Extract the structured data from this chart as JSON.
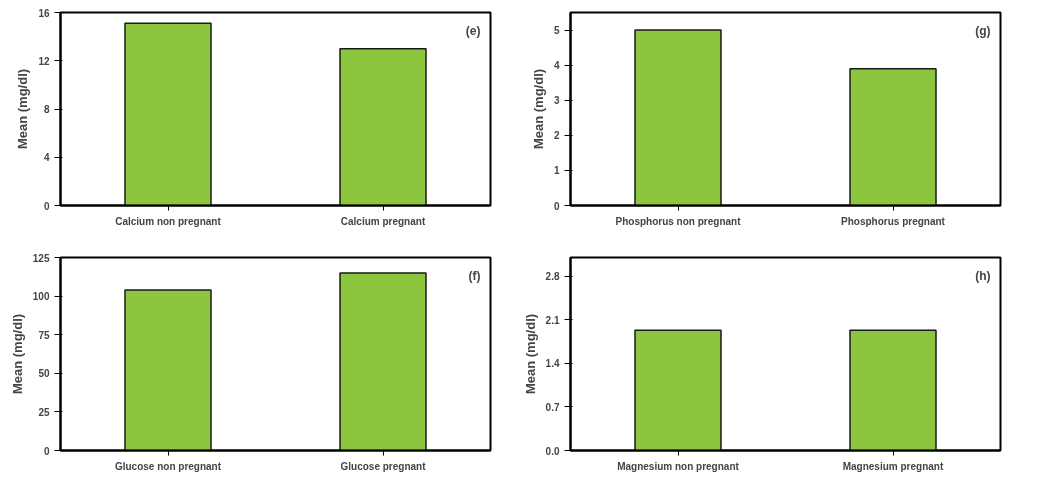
{
  "chart_data": [
    {
      "type": "bar",
      "categories": [
        "Calcium non pregnant",
        "Calcium pregnant"
      ],
      "values": [
        15.1,
        13.0
      ],
      "color": "#8cc63e",
      "ylabel": "Mean (mg/dl)",
      "ylim": [
        0,
        16
      ],
      "yticks": [
        0,
        4,
        8,
        12,
        16
      ],
      "annotations": [
        "(e)"
      ],
      "grid": false
    },
    {
      "type": "bar",
      "categories": [
        "Phosphorus non pregnant",
        "Phosphorus pregnant"
      ],
      "values": [
        5.0,
        3.9
      ],
      "color": "#8cc63e",
      "ylabel": "Mean (mg/dl)",
      "ylim": [
        0,
        5.5
      ],
      "yticks": [
        0,
        1,
        2,
        3,
        4,
        5
      ],
      "annotations": [
        "(g)"
      ],
      "grid": false
    },
    {
      "type": "bar",
      "categories": [
        "Glucose non pregnant",
        "Glucose pregnant"
      ],
      "values": [
        104,
        115
      ],
      "color": "#8cc63e",
      "ylabel": "Mean (mg/dl)",
      "ylim": [
        0,
        125
      ],
      "yticks": [
        0,
        25,
        50,
        75,
        100,
        125
      ],
      "annotations": [
        "(f)"
      ],
      "grid": false
    },
    {
      "type": "bar",
      "categories": [
        "Magnesium non pregnant",
        "Magnesium pregnant"
      ],
      "values": [
        1.93,
        1.93
      ],
      "color": "#8cc63e",
      "ylabel": "Mean (mg/dl)",
      "ylim": [
        0,
        3.1
      ],
      "yticks": [
        {
          "value": 0,
          "label": "0.0"
        },
        0.7,
        1.4,
        2.1,
        2.8
      ],
      "annotations": [
        "(h)"
      ],
      "grid": false
    }
  ]
}
